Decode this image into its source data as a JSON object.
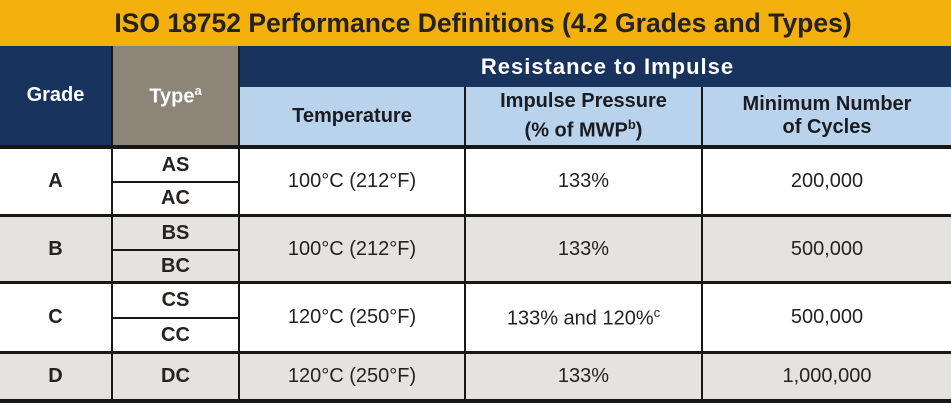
{
  "title": "ISO 18752 Performance Definitions (4.2 Grades and Types)",
  "colors": {
    "gold": "#F4B00D",
    "navy": "#17335E",
    "taupe": "#8D8577",
    "light_blue": "#B9D3EC",
    "row_gray": "#E5E3DF",
    "border": "#1A1613",
    "title_text": "#242321",
    "header_dark_text": "#1A1C22",
    "data_text": "#262220"
  },
  "header": {
    "grade": "Grade",
    "type": "Type",
    "type_sup": "a",
    "banner": "Resistance to Impulse",
    "temperature": "Temperature",
    "impulse_line1": "Impulse Pressure",
    "impulse_line2_pre": "(% of MWP",
    "impulse_sup": "b",
    "impulse_line2_post": ")",
    "cycles_line1": "Minimum Number",
    "cycles_line2": "of Cycles"
  },
  "rows": [
    {
      "grade": "A",
      "types": [
        "AS",
        "AC"
      ],
      "temperature": "100°C (212°F)",
      "impulse": "133%",
      "impulse_sup": "",
      "cycles": "200,000",
      "shade": "white"
    },
    {
      "grade": "B",
      "types": [
        "BS",
        "BC"
      ],
      "temperature": "100°C (212°F)",
      "impulse": "133%",
      "impulse_sup": "",
      "cycles": "500,000",
      "shade": "gray"
    },
    {
      "grade": "C",
      "types": [
        "CS",
        "CC"
      ],
      "temperature": "120°C (250°F)",
      "impulse": "133% and 120%",
      "impulse_sup": "c",
      "cycles": "500,000",
      "shade": "white"
    },
    {
      "grade": "D",
      "types": [
        "DC"
      ],
      "temperature": "120°C (250°F)",
      "impulse": "133%",
      "impulse_sup": "",
      "cycles": "1,000,000",
      "shade": "gray"
    }
  ]
}
